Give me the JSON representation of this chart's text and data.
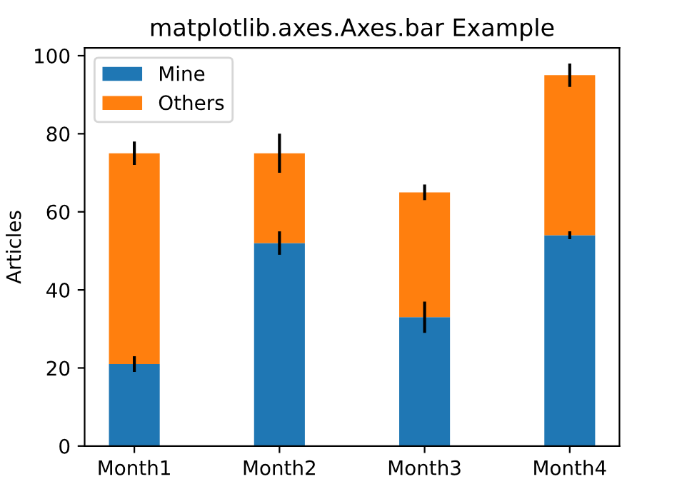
{
  "chart_data": {
    "type": "bar",
    "title": "matplotlib.axes.Axes.bar Example",
    "ylabel": "Articles",
    "categories": [
      "Month1",
      "Month2",
      "Month3",
      "Month4"
    ],
    "series": [
      {
        "name": "Mine",
        "color": "#1f77b4",
        "values": [
          21,
          52,
          33,
          54
        ],
        "errors": [
          2,
          3,
          4,
          1
        ]
      },
      {
        "name": "Others",
        "color": "#ff7f0e",
        "values": [
          54,
          23,
          32,
          41
        ],
        "errors": [
          3,
          5,
          2,
          3
        ]
      }
    ],
    "stacked": true,
    "ylim": [
      0,
      102
    ],
    "yticks": [
      0,
      20,
      40,
      60,
      80,
      100
    ],
    "legend": "top left"
  }
}
